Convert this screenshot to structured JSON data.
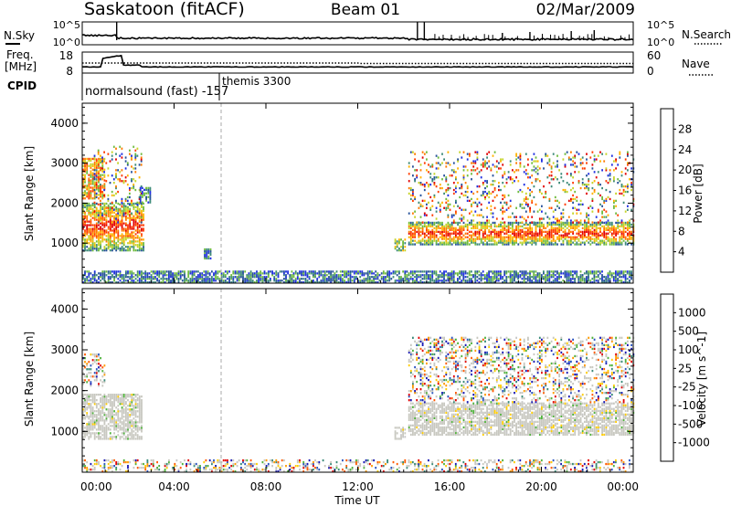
{
  "header": {
    "station": "Saskatoon (fitACF)",
    "beam": "Beam 01",
    "date": "02/Mar/2009"
  },
  "top_panels": {
    "nsky": {
      "label": "N.Sky",
      "ticks": [
        "10^5",
        "10^0"
      ]
    },
    "nsearch": {
      "label": "N.Search",
      "ticks": [
        "10^5",
        "10^0"
      ]
    },
    "freq": {
      "label_line1": "Freq.",
      "label_line2": "[MHz]",
      "ticks": [
        "18",
        "8"
      ]
    },
    "nave": {
      "label": "Nave",
      "ticks": [
        "60",
        "0"
      ]
    },
    "cpid": {
      "label": "CPID",
      "programs": [
        "normalsound (fast) -157",
        "themis 3300"
      ]
    }
  },
  "colors": {
    "power": [
      "#1f2fe0",
      "#25509a",
      "#3d8a78",
      "#6fbb3e",
      "#c6d42a",
      "#ffb400",
      "#ff7b00",
      "#ff3c00",
      "#e10000"
    ],
    "velocity": [
      "#1a1ab4",
      "#2c56c0",
      "#3a8a78",
      "#50b23c",
      "#c8c8c8",
      "#ffcc00",
      "#ff9a00",
      "#ff5a00",
      "#e10000"
    ],
    "gray_groundscatter": "#c8c8c0"
  },
  "chart_data": [
    {
      "type": "heatmap",
      "title": "",
      "ylabel": "Slant Range [km]",
      "xlabel": "",
      "colorbar_label": "Power [dB]",
      "colorbar_ticks": [
        "4",
        "8",
        "12",
        "16",
        "20",
        "24",
        "28"
      ],
      "ylim": [
        0,
        4500
      ],
      "yticks": [
        "1000",
        "2000",
        "3000",
        "4000"
      ],
      "xlim_hours": [
        0,
        24
      ],
      "xticks": [
        "00:00",
        "04:00",
        "08:00",
        "12:00",
        "16:00",
        "20:00",
        "00:00"
      ],
      "regions": [
        {
          "t": [
            0.0,
            1.0
          ],
          "r": [
            2100,
            3100
          ],
          "level": "mid-high"
        },
        {
          "t": [
            0.0,
            2.7
          ],
          "r": [
            800,
            2000
          ],
          "level": "high"
        },
        {
          "t": [
            0.5,
            2.6
          ],
          "r": [
            1500,
            3400
          ],
          "level": "scattered"
        },
        {
          "t": [
            2.5,
            3.0
          ],
          "r": [
            2000,
            2400
          ],
          "level": "low"
        },
        {
          "t": [
            0.0,
            23.9
          ],
          "r": [
            0,
            300
          ],
          "level": "low"
        },
        {
          "t": [
            5.3,
            5.6
          ],
          "r": [
            600,
            850
          ],
          "level": "low"
        },
        {
          "t": [
            13.6,
            14.1
          ],
          "r": [
            800,
            1100
          ],
          "level": "mid"
        },
        {
          "t": [
            14.2,
            24.0
          ],
          "r": [
            950,
            1500
          ],
          "level": "high"
        },
        {
          "t": [
            14.2,
            24.0
          ],
          "r": [
            1500,
            3300
          ],
          "level": "scattered"
        }
      ]
    },
    {
      "type": "heatmap",
      "title": "",
      "ylabel": "Slant Range [km]",
      "xlabel": "Time UT",
      "colorbar_label": "Velocity [m s^-1]",
      "colorbar_ticks": [
        "-1000",
        "-500",
        "-100",
        "-25",
        "25",
        "100",
        "500",
        "1000"
      ],
      "ylim": [
        0,
        4500
      ],
      "yticks": [
        "1000",
        "2000",
        "3000",
        "4000"
      ],
      "xlim_hours": [
        0,
        24
      ],
      "xticks": [
        "00:00",
        "04:00",
        "08:00",
        "12:00",
        "16:00",
        "20:00",
        "00:00"
      ],
      "regions": [
        {
          "t": [
            0.0,
            1.0
          ],
          "r": [
            2100,
            2900
          ],
          "level": "mixed"
        },
        {
          "t": [
            0.0,
            2.6
          ],
          "r": [
            800,
            1900
          ],
          "level": "ground"
        },
        {
          "t": [
            0.0,
            23.9
          ],
          "r": [
            0,
            300
          ],
          "level": "mixed"
        },
        {
          "t": [
            13.6,
            14.1
          ],
          "r": [
            800,
            1100
          ],
          "level": "ground"
        },
        {
          "t": [
            14.2,
            24.0
          ],
          "r": [
            900,
            1700
          ],
          "level": "ground"
        },
        {
          "t": [
            14.2,
            24.0
          ],
          "r": [
            1700,
            3300
          ],
          "level": "mixed"
        }
      ]
    }
  ]
}
